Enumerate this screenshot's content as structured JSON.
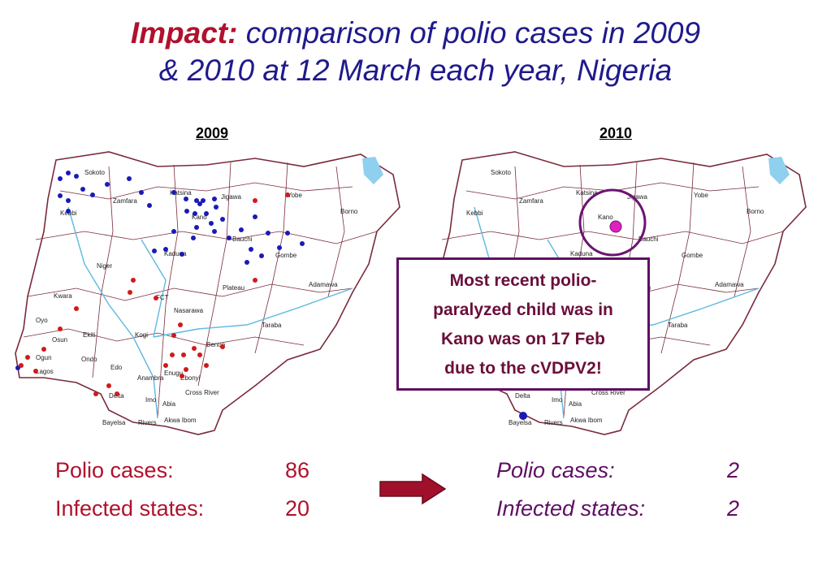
{
  "title": {
    "lead": "Impact:",
    "line1_rest": "comparison of polio cases in 2009",
    "line2": "& 2010 at 12 March each year, Nigeria"
  },
  "maps": {
    "left_year": "2009",
    "right_year": "2010",
    "state_labels": [
      "Sokoto",
      "Zamfara",
      "Katsina",
      "Jigawa",
      "Yobe",
      "Borno",
      "Kebbi",
      "Kano",
      "Bauchi",
      "Gombe",
      "Niger",
      "Kaduna",
      "Kwara",
      "FCT",
      "Plateau",
      "Adamawa",
      "Nasarawa",
      "Oyo",
      "Osun",
      "Ekiti",
      "Kogi",
      "Taraba",
      "Ogun",
      "Ondo",
      "Edo",
      "Benue",
      "Lagos",
      "Enugu",
      "Anambra",
      "Ebonyi",
      "Delta",
      "Imo",
      "Abia",
      "Cross River",
      "Bayelsa",
      "Rivers",
      "Akwa Ibom"
    ]
  },
  "callout": {
    "line1": "Most recent polio-",
    "line2": "paralyzed child was in",
    "line3": "Kano was on 17 Feb",
    "line4": "due to the cVDPV2!"
  },
  "stats_2009": {
    "cases_label": "Polio cases:",
    "cases_value": "86",
    "states_label": "Infected states:",
    "states_value": "20"
  },
  "stats_2010": {
    "cases_label": "Polio cases:",
    "cases_value": "2",
    "states_label": "Infected states:",
    "states_value": "2"
  },
  "colors": {
    "title_lead": "#b0112d",
    "title_text": "#1f1a8c",
    "wpv1_dot": "#1a1ab8",
    "wpv3_dot": "#d01a1a",
    "cvdpv_dot": "#e020c0",
    "highlight_circle": "#6b1470",
    "arrow": "#a0102a",
    "river": "#5fb8e0",
    "border": "#7a2a3a"
  }
}
